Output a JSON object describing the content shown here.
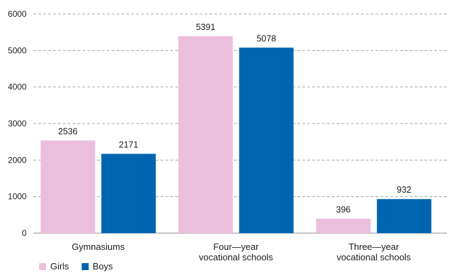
{
  "chart_data": {
    "type": "bar",
    "title": "",
    "xlabel": "",
    "ylabel": "",
    "ylim": [
      0,
      6000
    ],
    "yticks": [
      0,
      1000,
      2000,
      3000,
      4000,
      5000,
      6000
    ],
    "grid": true,
    "legend_position": "bottom-left",
    "categories": [
      [
        "Gymnasiums"
      ],
      [
        "Four—year",
        "vocational schools"
      ],
      [
        "Three—year",
        "vocational schools"
      ]
    ],
    "series": [
      {
        "name": "Girls",
        "color": "#ebbfdc",
        "values": [
          2536,
          5391,
          396
        ]
      },
      {
        "name": "Boys",
        "color": "#0065b0",
        "values": [
          2171,
          5078,
          932
        ]
      }
    ]
  }
}
